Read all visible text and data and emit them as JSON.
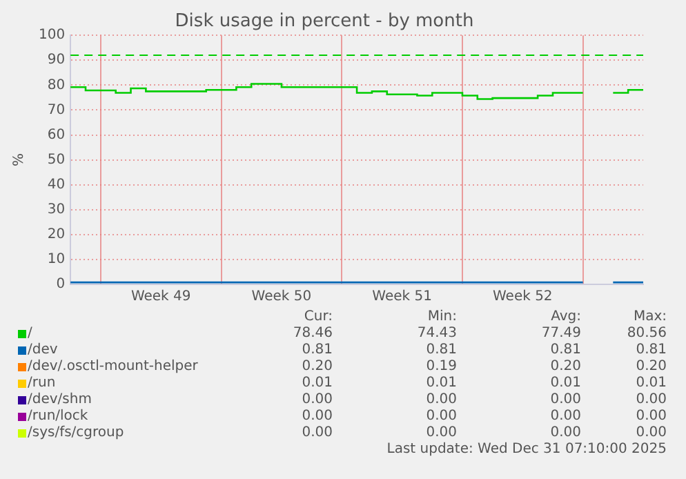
{
  "chart_data": {
    "type": "step",
    "title": "Disk usage in percent - by month",
    "ylabel": "%",
    "categories": [
      null,
      null,
      null,
      null,
      null,
      null,
      "Week 49",
      null,
      null,
      null,
      null,
      null,
      null,
      null,
      "Week 50",
      null,
      null,
      null,
      null,
      null,
      null,
      null,
      "Week 51",
      null,
      null,
      null,
      null,
      null,
      null,
      null,
      "Week 52",
      null,
      null,
      null,
      null,
      null,
      null,
      null,
      null
    ],
    "ylim": [
      0,
      100
    ],
    "yticks": [
      0,
      10,
      20,
      30,
      40,
      50,
      60,
      70,
      80,
      90,
      100
    ],
    "grid": true,
    "legend": "bottom",
    "ref_lines": [
      {
        "axis": "y",
        "value": 92,
        "color": "#00cc00",
        "line_style": "dashed"
      }
    ],
    "series": [
      {
        "name": "/",
        "color": "#00cc00",
        "values": [
          79.2,
          77.9,
          77.9,
          76.9,
          78.7,
          77.5,
          77.5,
          77.5,
          77.5,
          78.1,
          78.1,
          79.2,
          80.5,
          80.5,
          79.2,
          79.2,
          79.2,
          79.2,
          79.2,
          76.9,
          77.5,
          76.3,
          76.3,
          75.8,
          76.9,
          76.9,
          75.8,
          74.4,
          74.8,
          74.8,
          74.8,
          75.8,
          76.9,
          76.9,
          76.9,
          null,
          76.9,
          78.1,
          78.1
        ]
      },
      {
        "name": "/dev",
        "color": "#0066b3",
        "values": [
          0.8,
          0.8,
          0.8,
          0.8,
          0.8,
          0.8,
          0.8,
          0.8,
          0.8,
          0.8,
          0.8,
          0.8,
          0.8,
          0.8,
          0.8,
          0.8,
          0.8,
          0.8,
          0.8,
          0.8,
          0.8,
          0.8,
          0.8,
          0.8,
          0.8,
          0.8,
          0.8,
          0.8,
          0.8,
          0.8,
          0.8,
          0.8,
          0.8,
          0.8,
          0.8,
          null,
          0.8,
          0.8,
          0.8
        ]
      },
      {
        "name": "/dev/.osctl-mount-helper",
        "color": "#ff8000",
        "values": [
          null,
          null,
          null,
          null,
          null,
          null,
          null,
          null,
          null,
          null,
          null,
          null,
          null,
          null,
          null,
          null,
          null,
          null,
          null,
          null,
          null,
          null,
          null,
          null,
          null,
          null,
          null,
          null,
          null,
          null,
          null,
          null,
          null,
          null,
          null,
          null,
          null,
          null,
          null
        ]
      },
      {
        "name": "/run",
        "color": "#ffcc00",
        "values": [
          null,
          null,
          null,
          null,
          null,
          null,
          null,
          null,
          null,
          null,
          null,
          null,
          null,
          null,
          null,
          null,
          null,
          null,
          null,
          null,
          null,
          null,
          null,
          null,
          null,
          null,
          null,
          null,
          null,
          null,
          null,
          null,
          null,
          null,
          null,
          null,
          null,
          null,
          null
        ]
      },
      {
        "name": "/dev/shm",
        "color": "#330099",
        "values": [
          null,
          null,
          null,
          null,
          null,
          null,
          null,
          null,
          null,
          null,
          null,
          null,
          null,
          null,
          null,
          null,
          null,
          null,
          null,
          null,
          null,
          null,
          null,
          null,
          null,
          null,
          null,
          null,
          null,
          null,
          null,
          null,
          null,
          null,
          null,
          null,
          null,
          null,
          null
        ]
      },
      {
        "name": "/run/lock",
        "color": "#990099",
        "values": [
          null,
          null,
          null,
          null,
          null,
          null,
          null,
          null,
          null,
          null,
          null,
          null,
          null,
          null,
          null,
          null,
          null,
          null,
          null,
          null,
          null,
          null,
          null,
          null,
          null,
          null,
          null,
          null,
          null,
          null,
          null,
          null,
          null,
          null,
          null,
          null,
          null,
          null,
          null
        ]
      },
      {
        "name": "/sys/fs/cgroup",
        "color": "#ccff00",
        "values": [
          null,
          null,
          null,
          null,
          null,
          null,
          null,
          null,
          null,
          null,
          null,
          null,
          null,
          null,
          null,
          null,
          null,
          null,
          null,
          null,
          null,
          null,
          null,
          null,
          null,
          null,
          null,
          null,
          null,
          null,
          null,
          null,
          null,
          null,
          null,
          null,
          null,
          null,
          null
        ]
      }
    ],
    "annotations": [
      "Cur:",
      "Min:",
      "Avg:",
      "Max:",
      "78.46",
      "74.43",
      "77.49",
      "80.56",
      "0.81",
      "0.81",
      "0.81",
      "0.81",
      "0.20",
      "0.19",
      "0.20",
      "0.20",
      "0.01",
      "0.01",
      "0.01",
      "0.01",
      "0.00",
      "0.00",
      "0.00",
      "0.00",
      "0.00",
      "0.00",
      "0.00",
      "0.00",
      "0.00",
      "0.00",
      "0.00",
      "0.00",
      "Last update: Wed Dec 31 07:10:00 2025"
    ]
  }
}
